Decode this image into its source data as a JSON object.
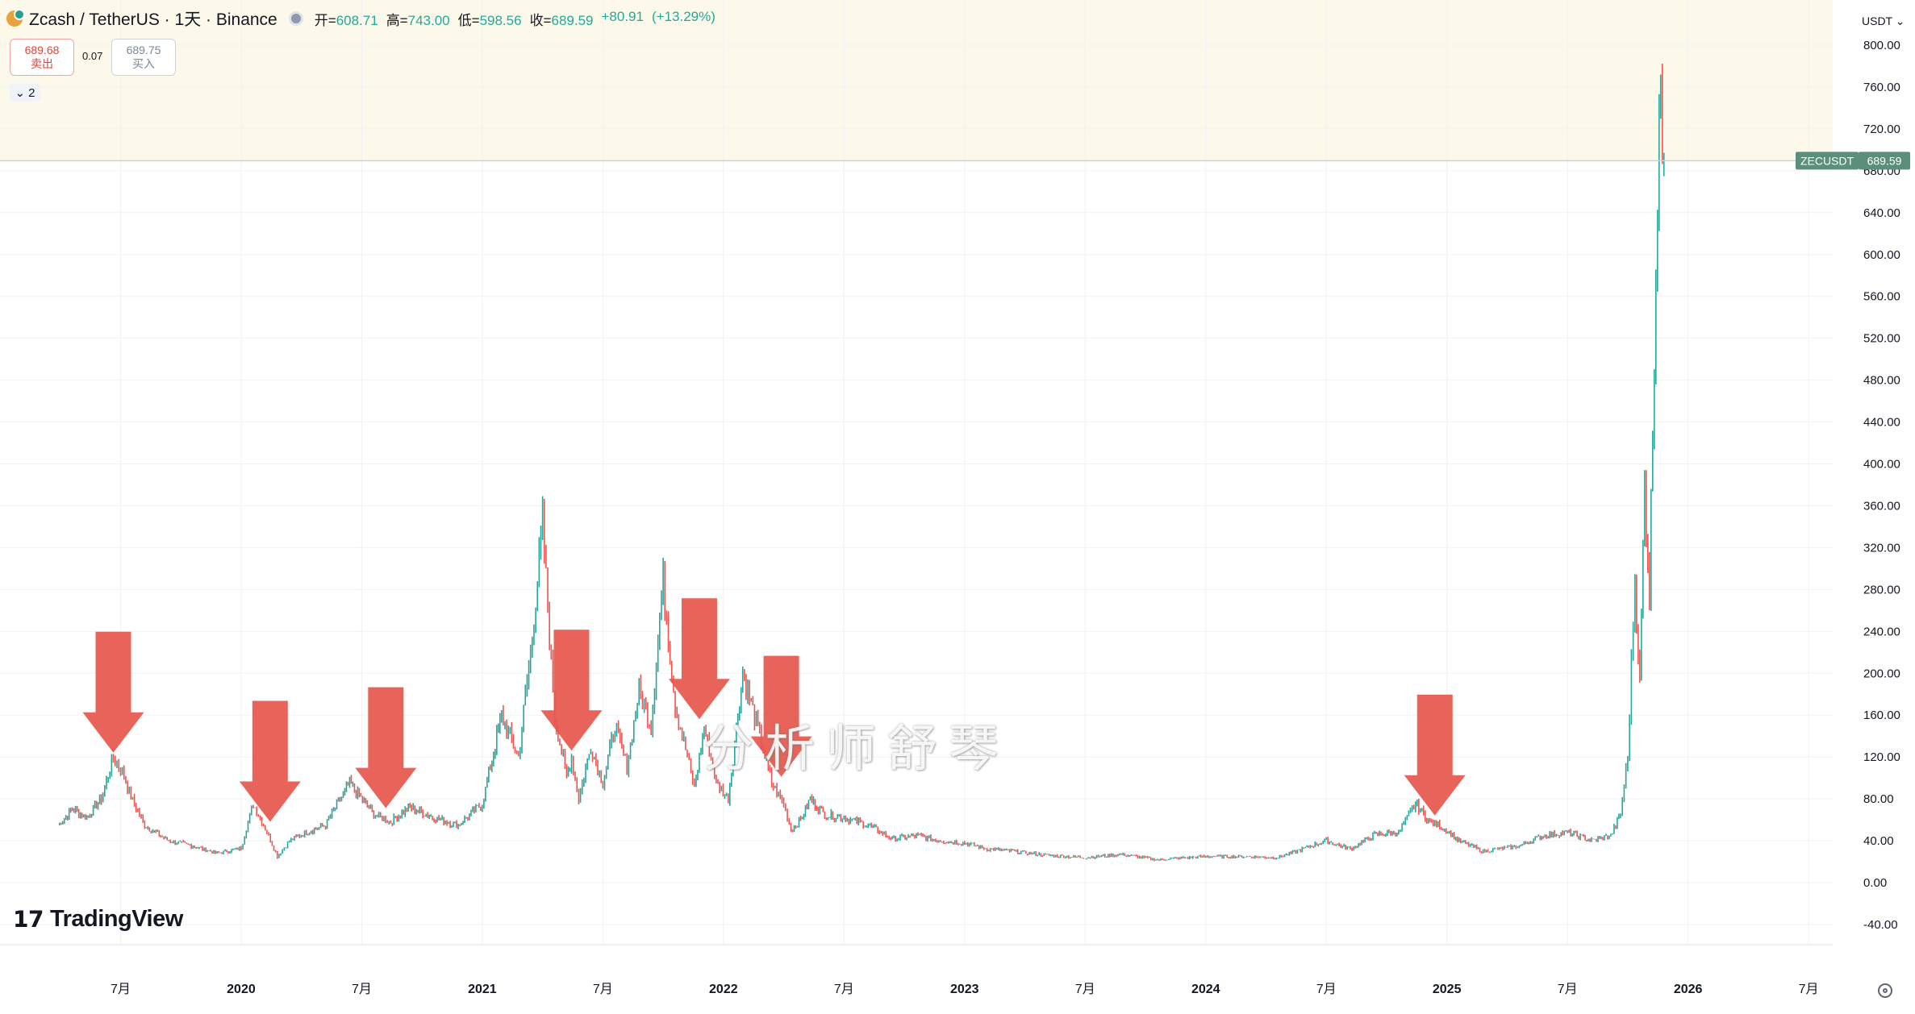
{
  "header": {
    "symbol": "Zcash / TetherUS · 1天 · Binance",
    "open_label": "开=",
    "open": "608.71",
    "high_label": "高=",
    "high": "743.00",
    "low_label": "低=",
    "low": "598.56",
    "close_label": "收=",
    "close": "689.59",
    "change": "+80.91",
    "change_pct": "(+13.29%)"
  },
  "quote": {
    "sell_price": "689.68",
    "sell_label": "卖出",
    "spread": "0.07",
    "buy_price": "689.75",
    "buy_label": "买入"
  },
  "indicators_toggle": "2",
  "currency": "USDT",
  "brand": "TradingView",
  "watermark": "分析师舒琴",
  "colors": {
    "up": "#26a69a",
    "down": "#ef5350",
    "arrow": "#e8645a",
    "label_bg": "#5b8f7b"
  },
  "chart_data": {
    "type": "line",
    "price_label": {
      "symbol": "ZECUSDT",
      "value": "689.59",
      "price": 689.59
    },
    "ylim": [
      -40,
      800
    ],
    "y_ticks": [
      "800.00",
      "760.00",
      "720.00",
      "680.00",
      "640.00",
      "600.00",
      "560.00",
      "520.00",
      "480.00",
      "440.00",
      "400.00",
      "360.00",
      "320.00",
      "280.00",
      "240.00",
      "200.00",
      "160.00",
      "120.00",
      "80.00",
      "40.00",
      "0.00",
      "-40.00"
    ],
    "y_tick_values": [
      800,
      760,
      720,
      680,
      640,
      600,
      560,
      520,
      480,
      440,
      400,
      360,
      320,
      280,
      240,
      200,
      160,
      120,
      80,
      40,
      0,
      -40
    ],
    "x_tick_labels": [
      "7月",
      "2020",
      "7月",
      "2021",
      "7月",
      "2022",
      "7月",
      "2023",
      "7月",
      "2024",
      "7月",
      "2025",
      "7月",
      "2026",
      "7月"
    ],
    "x_tick_dates": [
      2019.5,
      2020.0,
      2020.5,
      2021.0,
      2021.5,
      2022.0,
      2022.5,
      2023.0,
      2023.5,
      2024.0,
      2024.5,
      2025.0,
      2025.5,
      2026.0,
      2026.5
    ],
    "xlim": [
      2019.0,
      2026.6
    ],
    "series": [
      {
        "x": [
          2019.24,
          2019.3,
          2019.36,
          2019.42,
          2019.47,
          2019.5,
          2019.55,
          2019.6,
          2019.7,
          2019.8,
          2019.9,
          2020.0,
          2020.05,
          2020.1,
          2020.15,
          2020.2,
          2020.27,
          2020.35,
          2020.45,
          2020.55,
          2020.62,
          2020.7,
          2020.8,
          2020.9,
          2021.0,
          2021.08,
          2021.15,
          2021.2,
          2021.25,
          2021.3,
          2021.35,
          2021.37,
          2021.4,
          2021.45,
          2021.5,
          2021.55,
          2021.6,
          2021.65,
          2021.7,
          2021.75,
          2021.8,
          2021.85,
          2021.88,
          2021.92,
          2021.97,
          2022.02,
          2022.08,
          2022.15,
          2022.2,
          2022.25,
          2022.28,
          2022.32,
          2022.36,
          2022.42,
          2022.5,
          2022.6,
          2022.7,
          2022.8,
          2022.9,
          2023.0,
          2023.1,
          2023.2,
          2023.35,
          2023.5,
          2023.65,
          2023.8,
          2024.0,
          2024.15,
          2024.3,
          2024.5,
          2024.6,
          2024.7,
          2024.8,
          2024.87,
          2024.93,
          2024.97,
          2025.05,
          2025.15,
          2025.3,
          2025.4,
          2025.5,
          2025.6,
          2025.68,
          2025.72,
          2025.75,
          2025.78,
          2025.8,
          2025.82,
          2025.84,
          2025.86,
          2025.88,
          2025.9
        ],
        "y": [
          55,
          70,
          62,
          80,
          118,
          110,
          78,
          55,
          40,
          35,
          28,
          33,
          75,
          52,
          25,
          40,
          48,
          55,
          95,
          65,
          58,
          72,
          62,
          55,
          75,
          160,
          120,
          220,
          340,
          160,
          100,
          120,
          80,
          130,
          95,
          150,
          110,
          185,
          150,
          290,
          170,
          120,
          90,
          150,
          95,
          80,
          200,
          140,
          95,
          75,
          50,
          60,
          80,
          65,
          62,
          55,
          42,
          45,
          40,
          38,
          32,
          30,
          26,
          24,
          27,
          22,
          25,
          25,
          24,
          40,
          32,
          46,
          48,
          75,
          58,
          55,
          40,
          30,
          35,
          45,
          48,
          40,
          45,
          65,
          120,
          290,
          190,
          380,
          280,
          520,
          740,
          690
        ]
      }
    ],
    "arrows_at": [
      2019.47,
      2020.12,
      2020.6,
      2021.37,
      2021.9,
      2022.24,
      2024.95
    ]
  }
}
